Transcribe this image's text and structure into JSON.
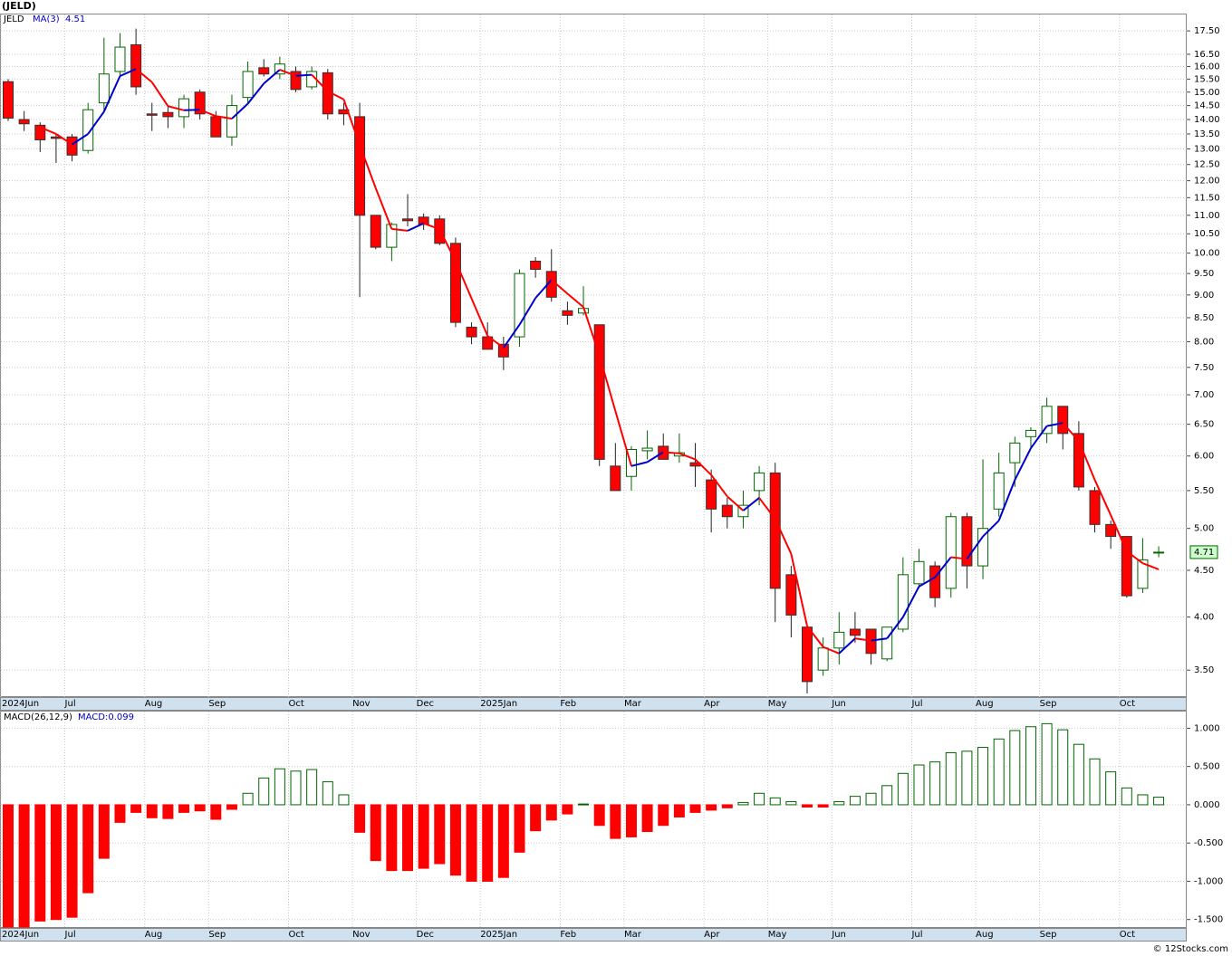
{
  "chart_data": [
    {
      "type": "candlestick",
      "title": "(JELD)",
      "symbol": "JELD",
      "log_scale": true,
      "grid": true,
      "up_color": "#006600",
      "down_color": "#ff0000",
      "tag_color": "#ccffcc",
      "categories": [
        "2024Jun",
        null,
        null,
        null,
        "Jul",
        null,
        null,
        null,
        null,
        "Aug",
        null,
        null,
        null,
        "Sep",
        null,
        null,
        null,
        null,
        "Oct",
        null,
        null,
        null,
        "Nov",
        null,
        null,
        null,
        "Dec",
        null,
        null,
        null,
        "2025Jan",
        null,
        null,
        null,
        null,
        "Feb",
        null,
        null,
        null,
        "Mar",
        null,
        null,
        null,
        null,
        "Apr",
        null,
        null,
        null,
        "May",
        null,
        null,
        null,
        "Jun",
        null,
        null,
        null,
        null,
        "Jul",
        null,
        null,
        null,
        "Aug",
        null,
        null,
        null,
        "Sep",
        null,
        null,
        null,
        null,
        "Oct",
        null,
        null
      ],
      "open": [
        15.4,
        14.0,
        13.8,
        13.4,
        13.4,
        12.95,
        14.6,
        15.8,
        16.9,
        14.2,
        14.25,
        14.1,
        15.0,
        14.1,
        13.4,
        14.8,
        15.95,
        15.7,
        15.8,
        15.2,
        15.75,
        14.35,
        14.1,
        11.0,
        10.15,
        10.9,
        10.95,
        10.9,
        10.25,
        8.3,
        8.1,
        7.95,
        8.1,
        9.8,
        9.55,
        8.65,
        8.6,
        8.35,
        5.85,
        5.7,
        6.08,
        6.15,
        6.0,
        5.9,
        5.65,
        5.3,
        5.15,
        5.5,
        5.75,
        4.45,
        3.9,
        3.5,
        3.7,
        3.88,
        3.88,
        3.6,
        3.88,
        4.35,
        4.55,
        4.3,
        5.15,
        4.55,
        5.25,
        5.9,
        6.3,
        6.35,
        6.8,
        6.35,
        5.5,
        5.05,
        4.9,
        4.3,
        4.7
      ],
      "high": [
        15.5,
        14.3,
        13.9,
        13.5,
        13.5,
        14.6,
        17.2,
        17.4,
        17.6,
        14.6,
        14.5,
        14.9,
        15.1,
        14.3,
        14.9,
        16.2,
        16.3,
        16.4,
        16.0,
        16.0,
        15.9,
        14.6,
        14.6,
        11.0,
        10.8,
        11.6,
        11.05,
        11.0,
        10.4,
        8.4,
        8.4,
        8.1,
        9.6,
        9.9,
        10.1,
        8.85,
        9.2,
        8.35,
        6.2,
        6.15,
        6.4,
        6.35,
        6.35,
        6.2,
        5.8,
        5.4,
        5.5,
        5.85,
        5.9,
        4.55,
        3.9,
        3.8,
        4.05,
        4.05,
        3.88,
        3.9,
        4.65,
        4.75,
        4.6,
        5.2,
        5.2,
        5.95,
        6.05,
        6.3,
        6.45,
        6.95,
        6.8,
        6.55,
        5.55,
        5.1,
        4.9,
        4.88,
        4.78
      ],
      "low": [
        13.95,
        13.6,
        12.9,
        12.55,
        12.6,
        12.85,
        14.3,
        15.6,
        14.9,
        13.6,
        13.7,
        13.7,
        14.0,
        13.4,
        13.1,
        14.6,
        15.6,
        15.5,
        15.0,
        15.1,
        14.0,
        13.8,
        8.95,
        10.1,
        9.8,
        10.7,
        10.6,
        10.2,
        8.3,
        7.95,
        7.85,
        7.45,
        7.9,
        9.4,
        8.85,
        8.35,
        8.55,
        5.85,
        5.5,
        5.5,
        5.95,
        5.95,
        5.9,
        5.55,
        4.95,
        5.0,
        5.0,
        5.3,
        3.95,
        3.8,
        3.3,
        3.45,
        3.55,
        3.75,
        3.55,
        3.58,
        3.85,
        4.3,
        4.1,
        4.2,
        4.3,
        4.4,
        5.15,
        5.55,
        6.1,
        6.2,
        6.1,
        5.5,
        4.95,
        4.75,
        4.2,
        4.25,
        4.65
      ],
      "close": [
        14.05,
        13.85,
        13.3,
        13.35,
        12.8,
        14.35,
        15.7,
        16.8,
        15.2,
        14.15,
        14.1,
        14.75,
        14.2,
        13.4,
        14.5,
        15.8,
        15.7,
        16.1,
        15.1,
        15.8,
        14.2,
        14.2,
        11.0,
        10.15,
        10.75,
        10.85,
        10.75,
        10.25,
        8.4,
        8.1,
        7.85,
        7.7,
        9.5,
        9.6,
        8.95,
        8.55,
        8.7,
        5.95,
        5.5,
        6.1,
        6.12,
        5.95,
        6.05,
        5.85,
        5.25,
        5.15,
        5.3,
        5.75,
        4.3,
        4.02,
        3.4,
        3.7,
        3.85,
        3.82,
        3.65,
        3.9,
        4.45,
        4.6,
        4.2,
        5.15,
        4.55,
        5.0,
        5.75,
        6.2,
        6.4,
        6.8,
        6.35,
        5.55,
        5.05,
        4.9,
        4.22,
        4.62,
        4.71
      ],
      "ma": {
        "name": "MA(3)",
        "rising_color": "#0000cc",
        "falling_color": "#ff0000",
        "values": [
          null,
          null,
          13.73,
          13.5,
          13.15,
          13.5,
          14.28,
          15.62,
          15.9,
          15.38,
          14.48,
          14.33,
          14.35,
          14.12,
          14.03,
          14.57,
          15.33,
          15.87,
          15.63,
          15.67,
          15.03,
          14.73,
          13.13,
          11.78,
          10.63,
          10.58,
          10.78,
          10.62,
          9.8,
          8.92,
          8.12,
          7.88,
          8.35,
          8.93,
          9.35,
          9.03,
          8.73,
          7.73,
          6.72,
          5.85,
          5.91,
          6.06,
          6.04,
          5.95,
          5.72,
          5.42,
          5.23,
          5.4,
          5.12,
          4.69,
          3.91,
          3.71,
          3.65,
          3.79,
          3.77,
          3.79,
          4.0,
          4.32,
          4.42,
          4.65,
          4.63,
          4.9,
          5.1,
          5.65,
          6.12,
          6.47,
          6.52,
          6.23,
          5.65,
          5.17,
          4.72,
          4.58,
          4.51
        ]
      },
      "ylim": [
        3.27,
        18.28
      ],
      "yticks": [
        {
          "value": 3.5,
          "label": "3.50"
        },
        {
          "value": 4,
          "label": "4.00"
        },
        {
          "value": 4.5,
          "label": "4.50"
        },
        {
          "value": 5,
          "label": "5.00"
        },
        {
          "value": 5.5,
          "label": "5.50"
        },
        {
          "value": 6,
          "label": "6.00"
        },
        {
          "value": 6.5,
          "label": "6.50"
        },
        {
          "value": 7,
          "label": "7.00"
        },
        {
          "value": 7.5,
          "label": "7.50"
        },
        {
          "value": 8,
          "label": "8.00"
        },
        {
          "value": 8.5,
          "label": "8.50"
        },
        {
          "value": 9,
          "label": "9.00"
        },
        {
          "value": 9.5,
          "label": "9.50"
        },
        {
          "value": 10,
          "label": "10.00"
        },
        {
          "value": 10.5,
          "label": "10.50"
        },
        {
          "value": 11,
          "label": "11.00"
        },
        {
          "value": 11.5,
          "label": "11.50"
        },
        {
          "value": 12,
          "label": "12.00"
        },
        {
          "value": 12.5,
          "label": "12.50"
        },
        {
          "value": 13,
          "label": "13.00"
        },
        {
          "value": 13.5,
          "label": "13.50"
        },
        {
          "value": 14,
          "label": "14.00"
        },
        {
          "value": 14.5,
          "label": "14.50"
        },
        {
          "value": 15,
          "label": "15.00"
        },
        {
          "value": 15.5,
          "label": "15.50"
        },
        {
          "value": 16,
          "label": "16.00"
        },
        {
          "value": 16.5,
          "label": "16.50"
        },
        {
          "value": 17.5,
          "label": "17.50"
        }
      ]
    },
    {
      "type": "bar",
      "title": "MACD(26,12,9)",
      "value_text": "MACD:0.099",
      "grid": true,
      "positive_color": "#006600",
      "negative_color": "#ff0000",
      "values": [
        -1.6,
        -1.6,
        -1.52,
        -1.5,
        -1.47,
        -1.15,
        -0.7,
        -0.23,
        -0.1,
        -0.17,
        -0.18,
        -0.1,
        -0.08,
        -0.19,
        -0.06,
        0.15,
        0.35,
        0.47,
        0.44,
        0.46,
        0.3,
        0.13,
        -0.36,
        -0.73,
        -0.86,
        -0.86,
        -0.83,
        -0.77,
        -0.92,
        -1.0,
        -1.0,
        -0.95,
        -0.62,
        -0.34,
        -0.2,
        -0.12,
        0.01,
        -0.27,
        -0.44,
        -0.42,
        -0.35,
        -0.27,
        -0.16,
        -0.1,
        -0.07,
        -0.04,
        0.03,
        0.15,
        0.09,
        0.04,
        -0.03,
        -0.03,
        0.04,
        0.11,
        0.15,
        0.25,
        0.41,
        0.52,
        0.56,
        0.68,
        0.7,
        0.75,
        0.86,
        0.97,
        1.02,
        1.06,
        0.98,
        0.79,
        0.6,
        0.43,
        0.22,
        0.13,
        0.099
      ],
      "ylim": [
        -1.61,
        1.23
      ],
      "yticks": [
        {
          "value": -1.5,
          "label": "-1.500"
        },
        {
          "value": -1,
          "label": "-1.000"
        },
        {
          "value": -0.5,
          "label": "-0.500"
        },
        {
          "value": 0,
          "label": "0.000"
        },
        {
          "value": 0.5,
          "label": "0.500"
        },
        {
          "value": 1,
          "label": "1.000"
        }
      ]
    }
  ],
  "footer": "© 12Stocks.com"
}
